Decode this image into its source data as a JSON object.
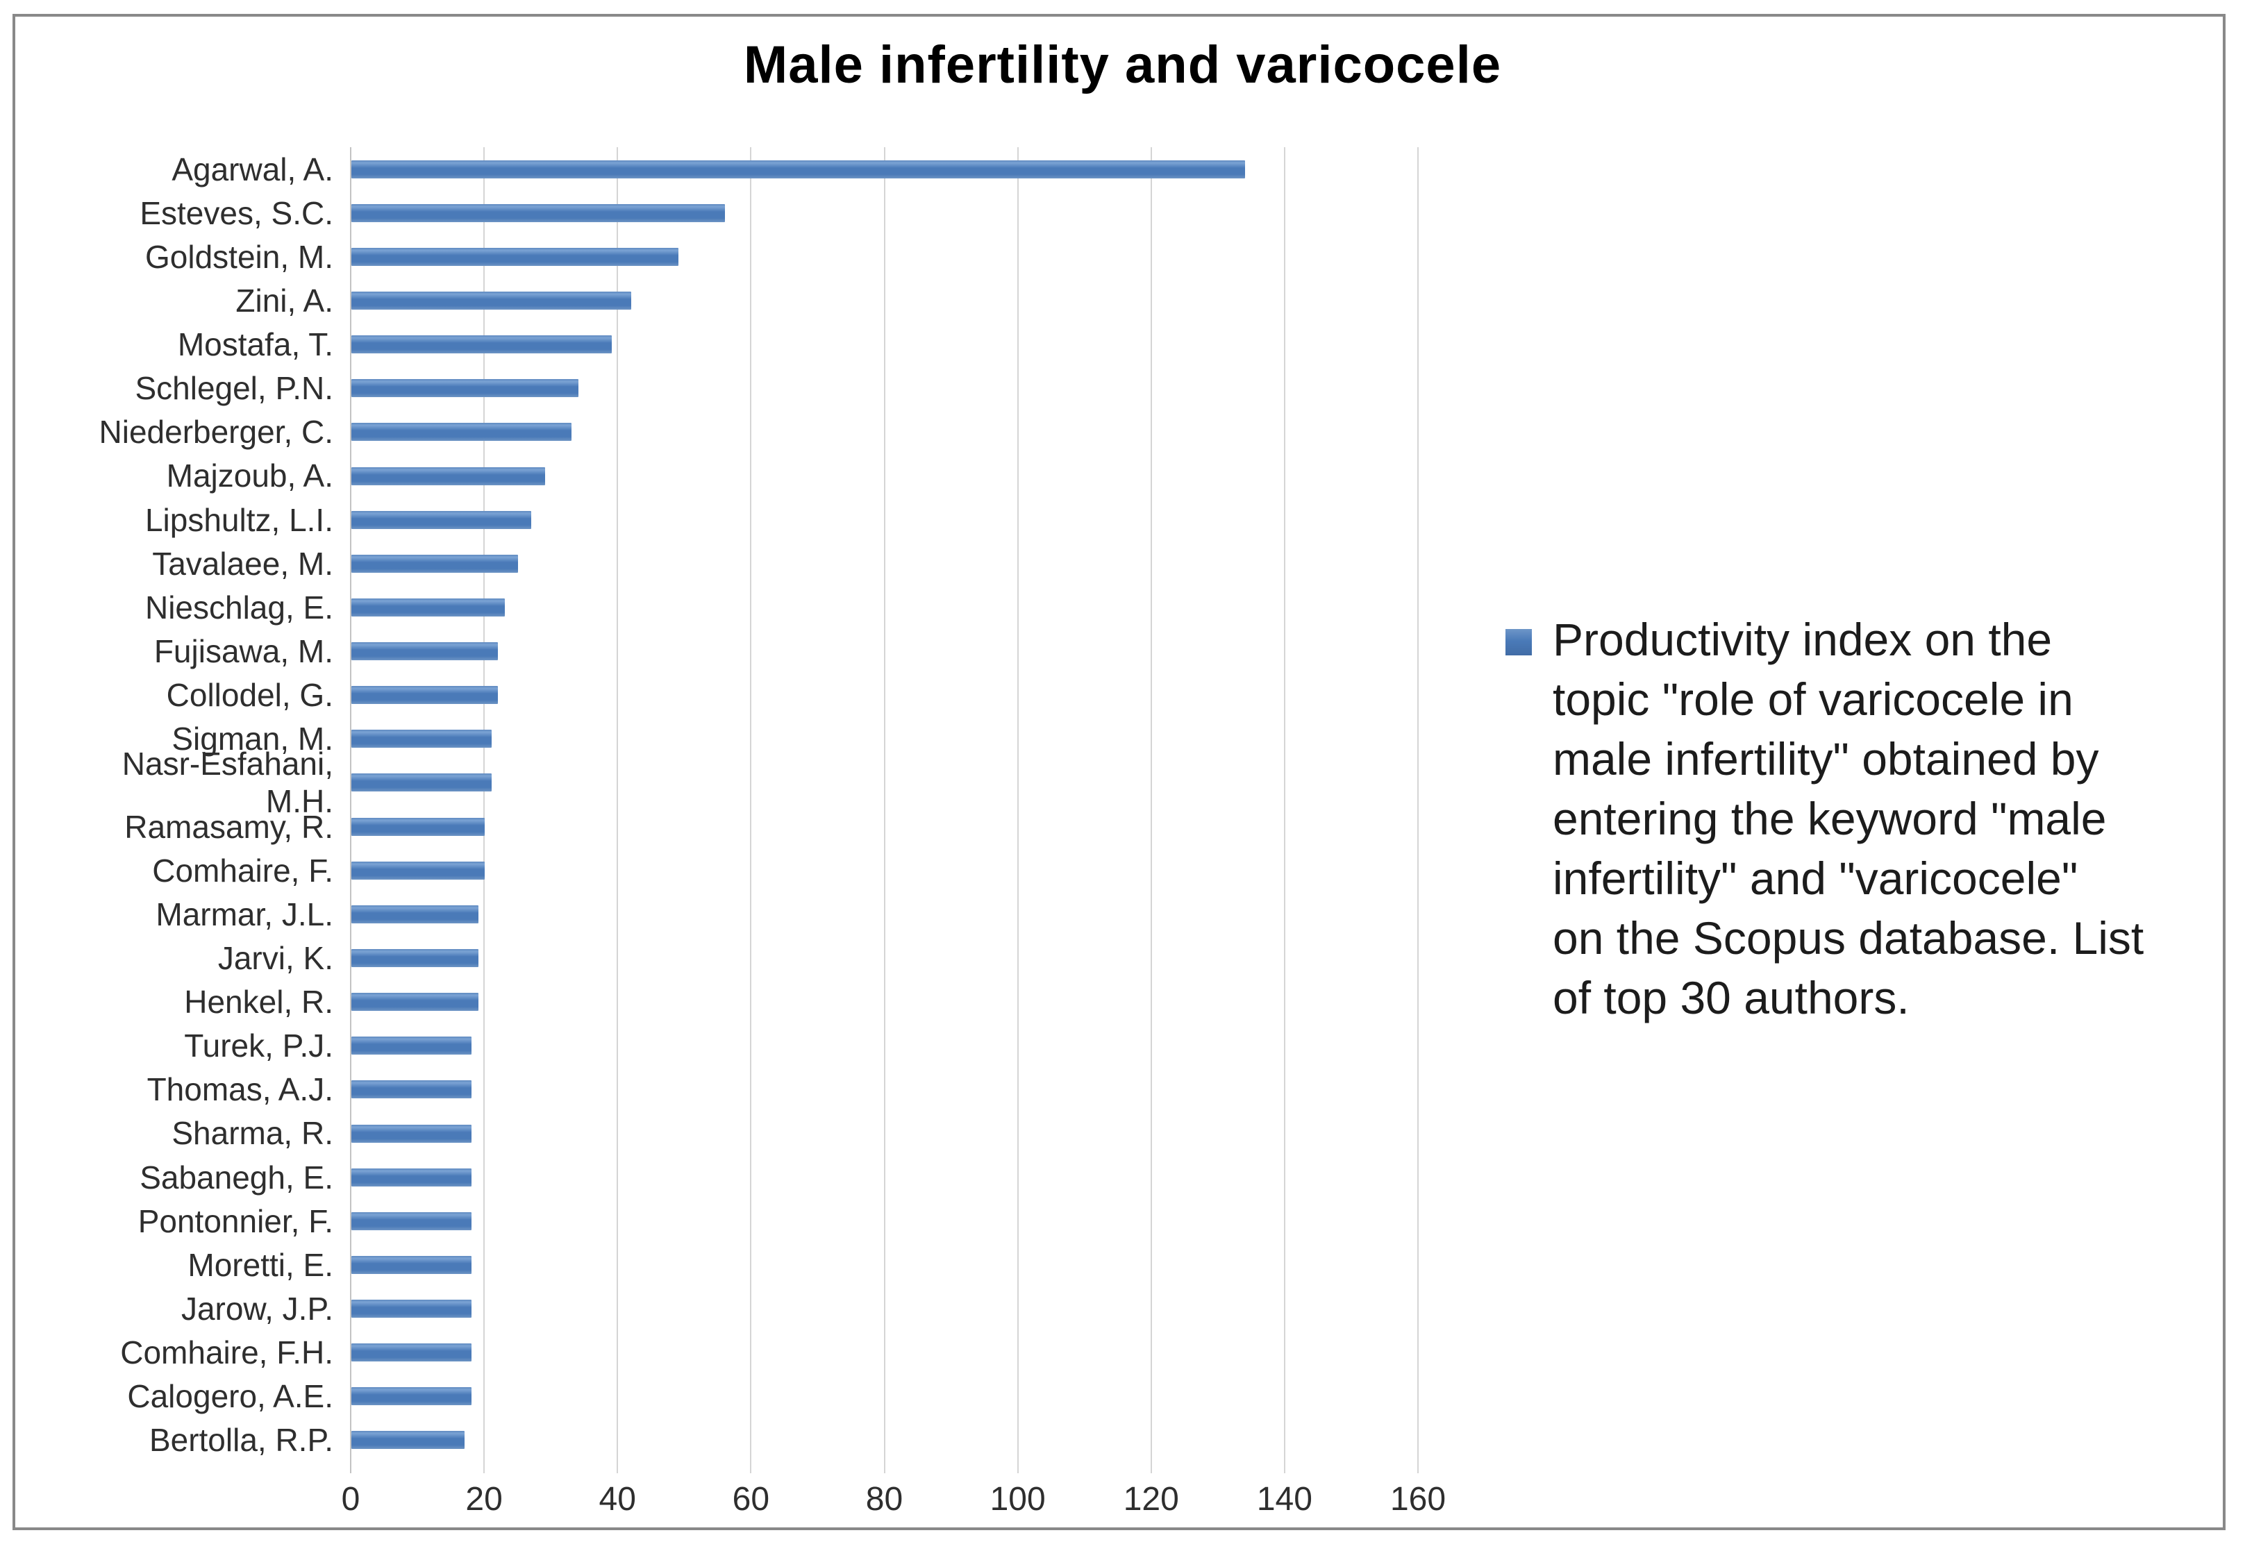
{
  "title": "Male infertility and varicocele",
  "legend": {
    "marker_color": "#4a7ab8",
    "text": "Productivity index on the\ntopic \"role of varicocele in\nmale infertility\" obtained by\nentering the keyword \"male\ninfertility\" and \"varicocele\"\non the Scopus database. List\nof top 30 authors."
  },
  "chart_data": {
    "type": "bar",
    "orientation": "horizontal",
    "title": "Male infertility and varicocele",
    "series_name": "Productivity index on the topic \"role of varicocele in male infertility\" obtained by entering the keyword \"male infertility\" and \"varicocele\" on the Scopus database. List of top 30 authors.",
    "categories": [
      "Agarwal, A.",
      "Esteves, S.C.",
      "Goldstein, M.",
      "Zini, A.",
      "Mostafa, T.",
      "Schlegel, P.N.",
      "Niederberger, C.",
      "Majzoub, A.",
      "Lipshultz, L.I.",
      "Tavalaee, M.",
      "Nieschlag, E.",
      "Fujisawa, M.",
      "Collodel, G.",
      "Sigman, M.",
      "Nasr-Esfahani, M.H.",
      "Ramasamy, R.",
      "Comhaire, F.",
      "Marmar, J.L.",
      "Jarvi, K.",
      "Henkel, R.",
      "Turek, P.J.",
      "Thomas, A.J.",
      "Sharma, R.",
      "Sabanegh, E.",
      "Pontonnier, F.",
      "Moretti, E.",
      "Jarow, J.P.",
      "Comhaire, F.H.",
      "Calogero, A.E.",
      "Bertolla, R.P."
    ],
    "values": [
      134,
      56,
      49,
      42,
      39,
      34,
      33,
      29,
      27,
      25,
      23,
      22,
      22,
      21,
      21,
      20,
      20,
      19,
      19,
      19,
      18,
      18,
      18,
      18,
      18,
      18,
      18,
      18,
      18,
      17
    ],
    "x_ticks": [
      "0",
      "20",
      "40",
      "60",
      "80",
      "100",
      "120",
      "140",
      "160"
    ],
    "x_tick_values": [
      0,
      20,
      40,
      60,
      80,
      100,
      120,
      140,
      160
    ],
    "xlim": [
      0,
      160
    ],
    "xlabel": "",
    "ylabel": "",
    "grid": true,
    "legend_position": "right",
    "bar_color": "#4a7ab8"
  }
}
